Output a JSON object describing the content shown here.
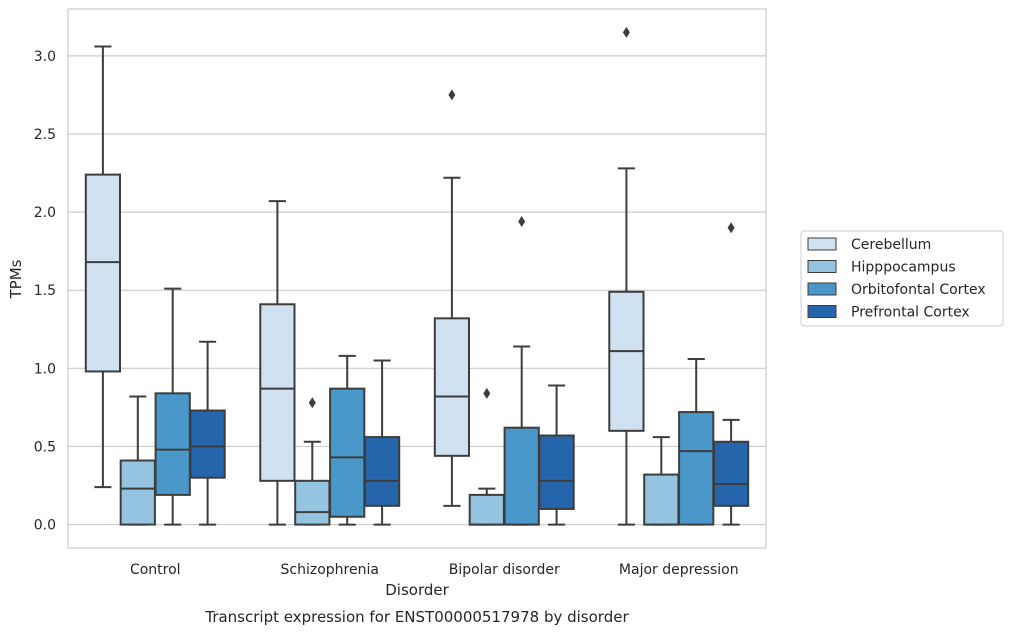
{
  "chart_data": {
    "type": "box",
    "xlabel": "Disorder",
    "ylabel": "TPMs",
    "caption": "Transcript expression for ENST00000517978 by disorder",
    "ylim": [
      -0.15,
      3.3
    ],
    "yticks": [
      0.0,
      0.5,
      1.0,
      1.5,
      2.0,
      2.5,
      3.0
    ],
    "ytick_labels": [
      "0.0",
      "0.5",
      "1.0",
      "1.5",
      "2.0",
      "2.5",
      "3.0"
    ],
    "grid": true,
    "legend_position": "right",
    "categories": [
      "Control",
      "Schizophrenia",
      "Bipolar disorder",
      "Major depression"
    ],
    "series": [
      {
        "name": "Cerebellum",
        "color": "#d0e1f2",
        "boxes": [
          {
            "whislo": 0.24,
            "q1": 0.98,
            "med": 1.68,
            "q3": 2.24,
            "whishi": 3.06,
            "fliers": []
          },
          {
            "whislo": 0.0,
            "q1": 0.28,
            "med": 0.87,
            "q3": 1.41,
            "whishi": 2.07,
            "fliers": []
          },
          {
            "whislo": 0.12,
            "q1": 0.44,
            "med": 0.82,
            "q3": 1.32,
            "whishi": 2.22,
            "fliers": [
              2.75
            ]
          },
          {
            "whislo": 0.0,
            "q1": 0.6,
            "med": 1.11,
            "q3": 1.49,
            "whishi": 2.28,
            "fliers": [
              3.15
            ]
          }
        ]
      },
      {
        "name": "Hipppocampus",
        "color": "#94c4df",
        "boxes": [
          {
            "whislo": 0.0,
            "q1": 0.0,
            "med": 0.23,
            "q3": 0.41,
            "whishi": 0.82,
            "fliers": []
          },
          {
            "whislo": 0.0,
            "q1": 0.0,
            "med": 0.08,
            "q3": 0.28,
            "whishi": 0.53,
            "fliers": [
              0.78
            ]
          },
          {
            "whislo": 0.0,
            "q1": 0.0,
            "med": 0.0,
            "q3": 0.19,
            "whishi": 0.23,
            "fliers": [
              0.84
            ]
          },
          {
            "whislo": 0.0,
            "q1": 0.0,
            "med": 0.0,
            "q3": 0.32,
            "whishi": 0.56,
            "fliers": []
          }
        ]
      },
      {
        "name": "Orbitofontal Cortex",
        "color": "#4a98c9",
        "boxes": [
          {
            "whislo": 0.0,
            "q1": 0.19,
            "med": 0.48,
            "q3": 0.84,
            "whishi": 1.51,
            "fliers": []
          },
          {
            "whislo": 0.0,
            "q1": 0.05,
            "med": 0.43,
            "q3": 0.87,
            "whishi": 1.08,
            "fliers": []
          },
          {
            "whislo": 0.0,
            "q1": 0.0,
            "med": 0.0,
            "q3": 0.62,
            "whishi": 1.14,
            "fliers": [
              1.94
            ]
          },
          {
            "whislo": 0.0,
            "q1": 0.0,
            "med": 0.47,
            "q3": 0.72,
            "whishi": 1.06,
            "fliers": []
          }
        ]
      },
      {
        "name": "Prefrontal Cortex",
        "color": "#2565ab",
        "boxes": [
          {
            "whislo": 0.0,
            "q1": 0.3,
            "med": 0.5,
            "q3": 0.73,
            "whishi": 1.17,
            "fliers": []
          },
          {
            "whislo": 0.0,
            "q1": 0.12,
            "med": 0.28,
            "q3": 0.56,
            "whishi": 1.05,
            "fliers": []
          },
          {
            "whislo": 0.0,
            "q1": 0.1,
            "med": 0.28,
            "q3": 0.57,
            "whishi": 0.89,
            "fliers": []
          },
          {
            "whislo": 0.0,
            "q1": 0.12,
            "med": 0.26,
            "q3": 0.53,
            "whishi": 0.67,
            "fliers": [
              1.9
            ]
          }
        ]
      }
    ]
  }
}
